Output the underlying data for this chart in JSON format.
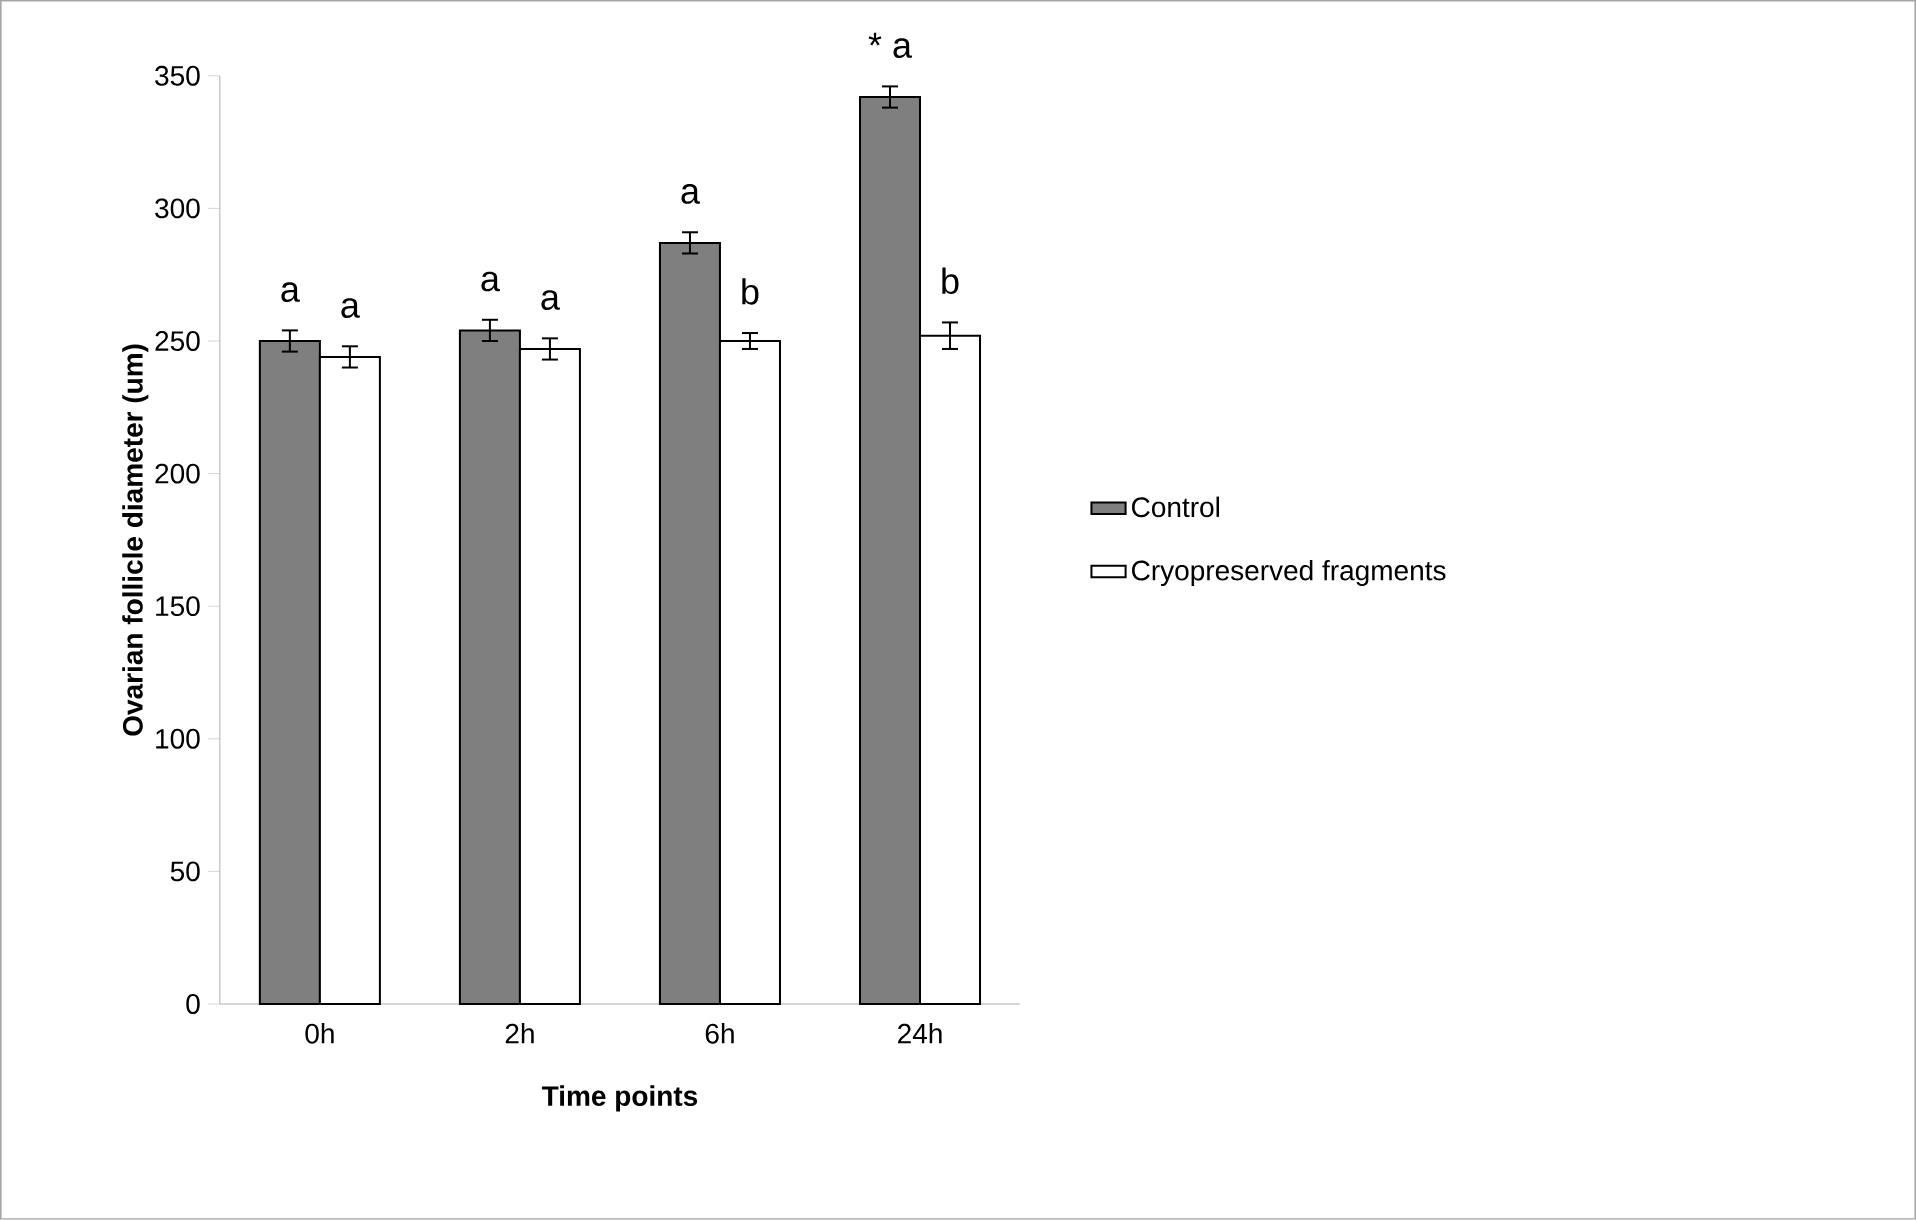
{
  "chart_data": {
    "type": "bar",
    "xlabel": "Time points",
    "ylabel": "Ovarian follicle diameter (um)",
    "categories": [
      "0h",
      "2h",
      "6h",
      "24h"
    ],
    "series": [
      {
        "name": "Control",
        "color": "#7f7f7f",
        "values": [
          250,
          254,
          287,
          342
        ],
        "errors": [
          4,
          4,
          4,
          4
        ],
        "value_labels": [
          "a",
          "a",
          "a",
          "* a"
        ]
      },
      {
        "name": "Cryopreserved fragments",
        "color": "#ffffff",
        "values": [
          244,
          247,
          250,
          252
        ],
        "errors": [
          4,
          4,
          3,
          5
        ],
        "value_labels": [
          "a",
          "a",
          "b",
          "b"
        ]
      }
    ],
    "ylim": [
      0,
      350
    ],
    "yticks": [
      0,
      50,
      100,
      150,
      200,
      250,
      300,
      350
    ],
    "legend": "right"
  }
}
